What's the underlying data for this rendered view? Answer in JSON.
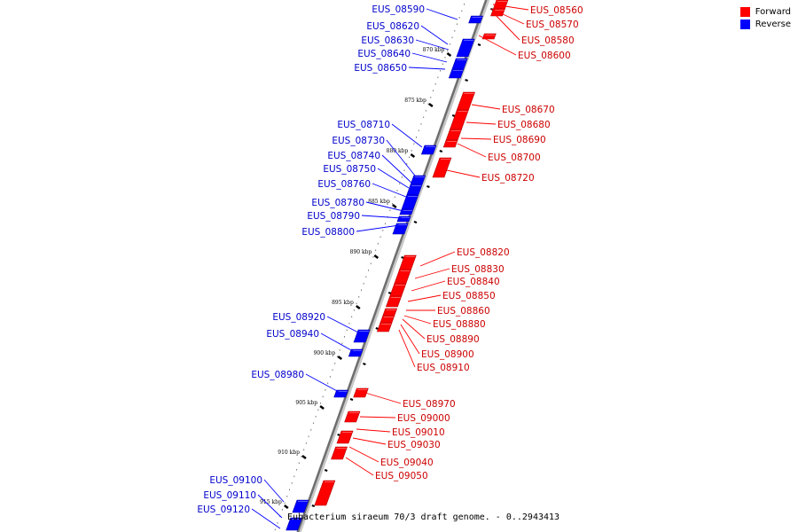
{
  "legend": {
    "forward_label": "Forward",
    "reverse_label": "Reverse",
    "forward_color": "#ff0000",
    "reverse_color": "#0000ff"
  },
  "caption": "Eubacterium siraeum 70/3 draft genome. - 0..2943413",
  "kbp_ticks": [
    "870 kbp",
    "875 kbp",
    "880 kbp",
    "885 kbp",
    "890 kbp",
    "895 kbp",
    "900 kbp",
    "905 kbp",
    "910 kbp",
    "915 kbp"
  ],
  "genes": {
    "forward": [
      "EUS_08560",
      "EUS_08570",
      "EUS_08580",
      "EUS_08600",
      "EUS_08670",
      "EUS_08680",
      "EUS_08690",
      "EUS_08700",
      "EUS_08720",
      "EUS_08820",
      "EUS_08830",
      "EUS_08840",
      "EUS_08850",
      "EUS_08860",
      "EUS_08880",
      "EUS_08890",
      "EUS_08900",
      "EUS_08910",
      "EUS_08970",
      "EUS_09000",
      "EUS_09010",
      "EUS_09030",
      "EUS_09040",
      "EUS_09050"
    ],
    "reverse": [
      "EUS_08590",
      "EUS_08620",
      "EUS_08630",
      "EUS_08640",
      "EUS_08650",
      "EUS_08710",
      "EUS_08730",
      "EUS_08740",
      "EUS_08750",
      "EUS_08760",
      "EUS_08780",
      "EUS_08790",
      "EUS_08800",
      "EUS_08920",
      "EUS_08940",
      "EUS_08980",
      "EUS_09100",
      "EUS_09110",
      "EUS_09120"
    ]
  }
}
